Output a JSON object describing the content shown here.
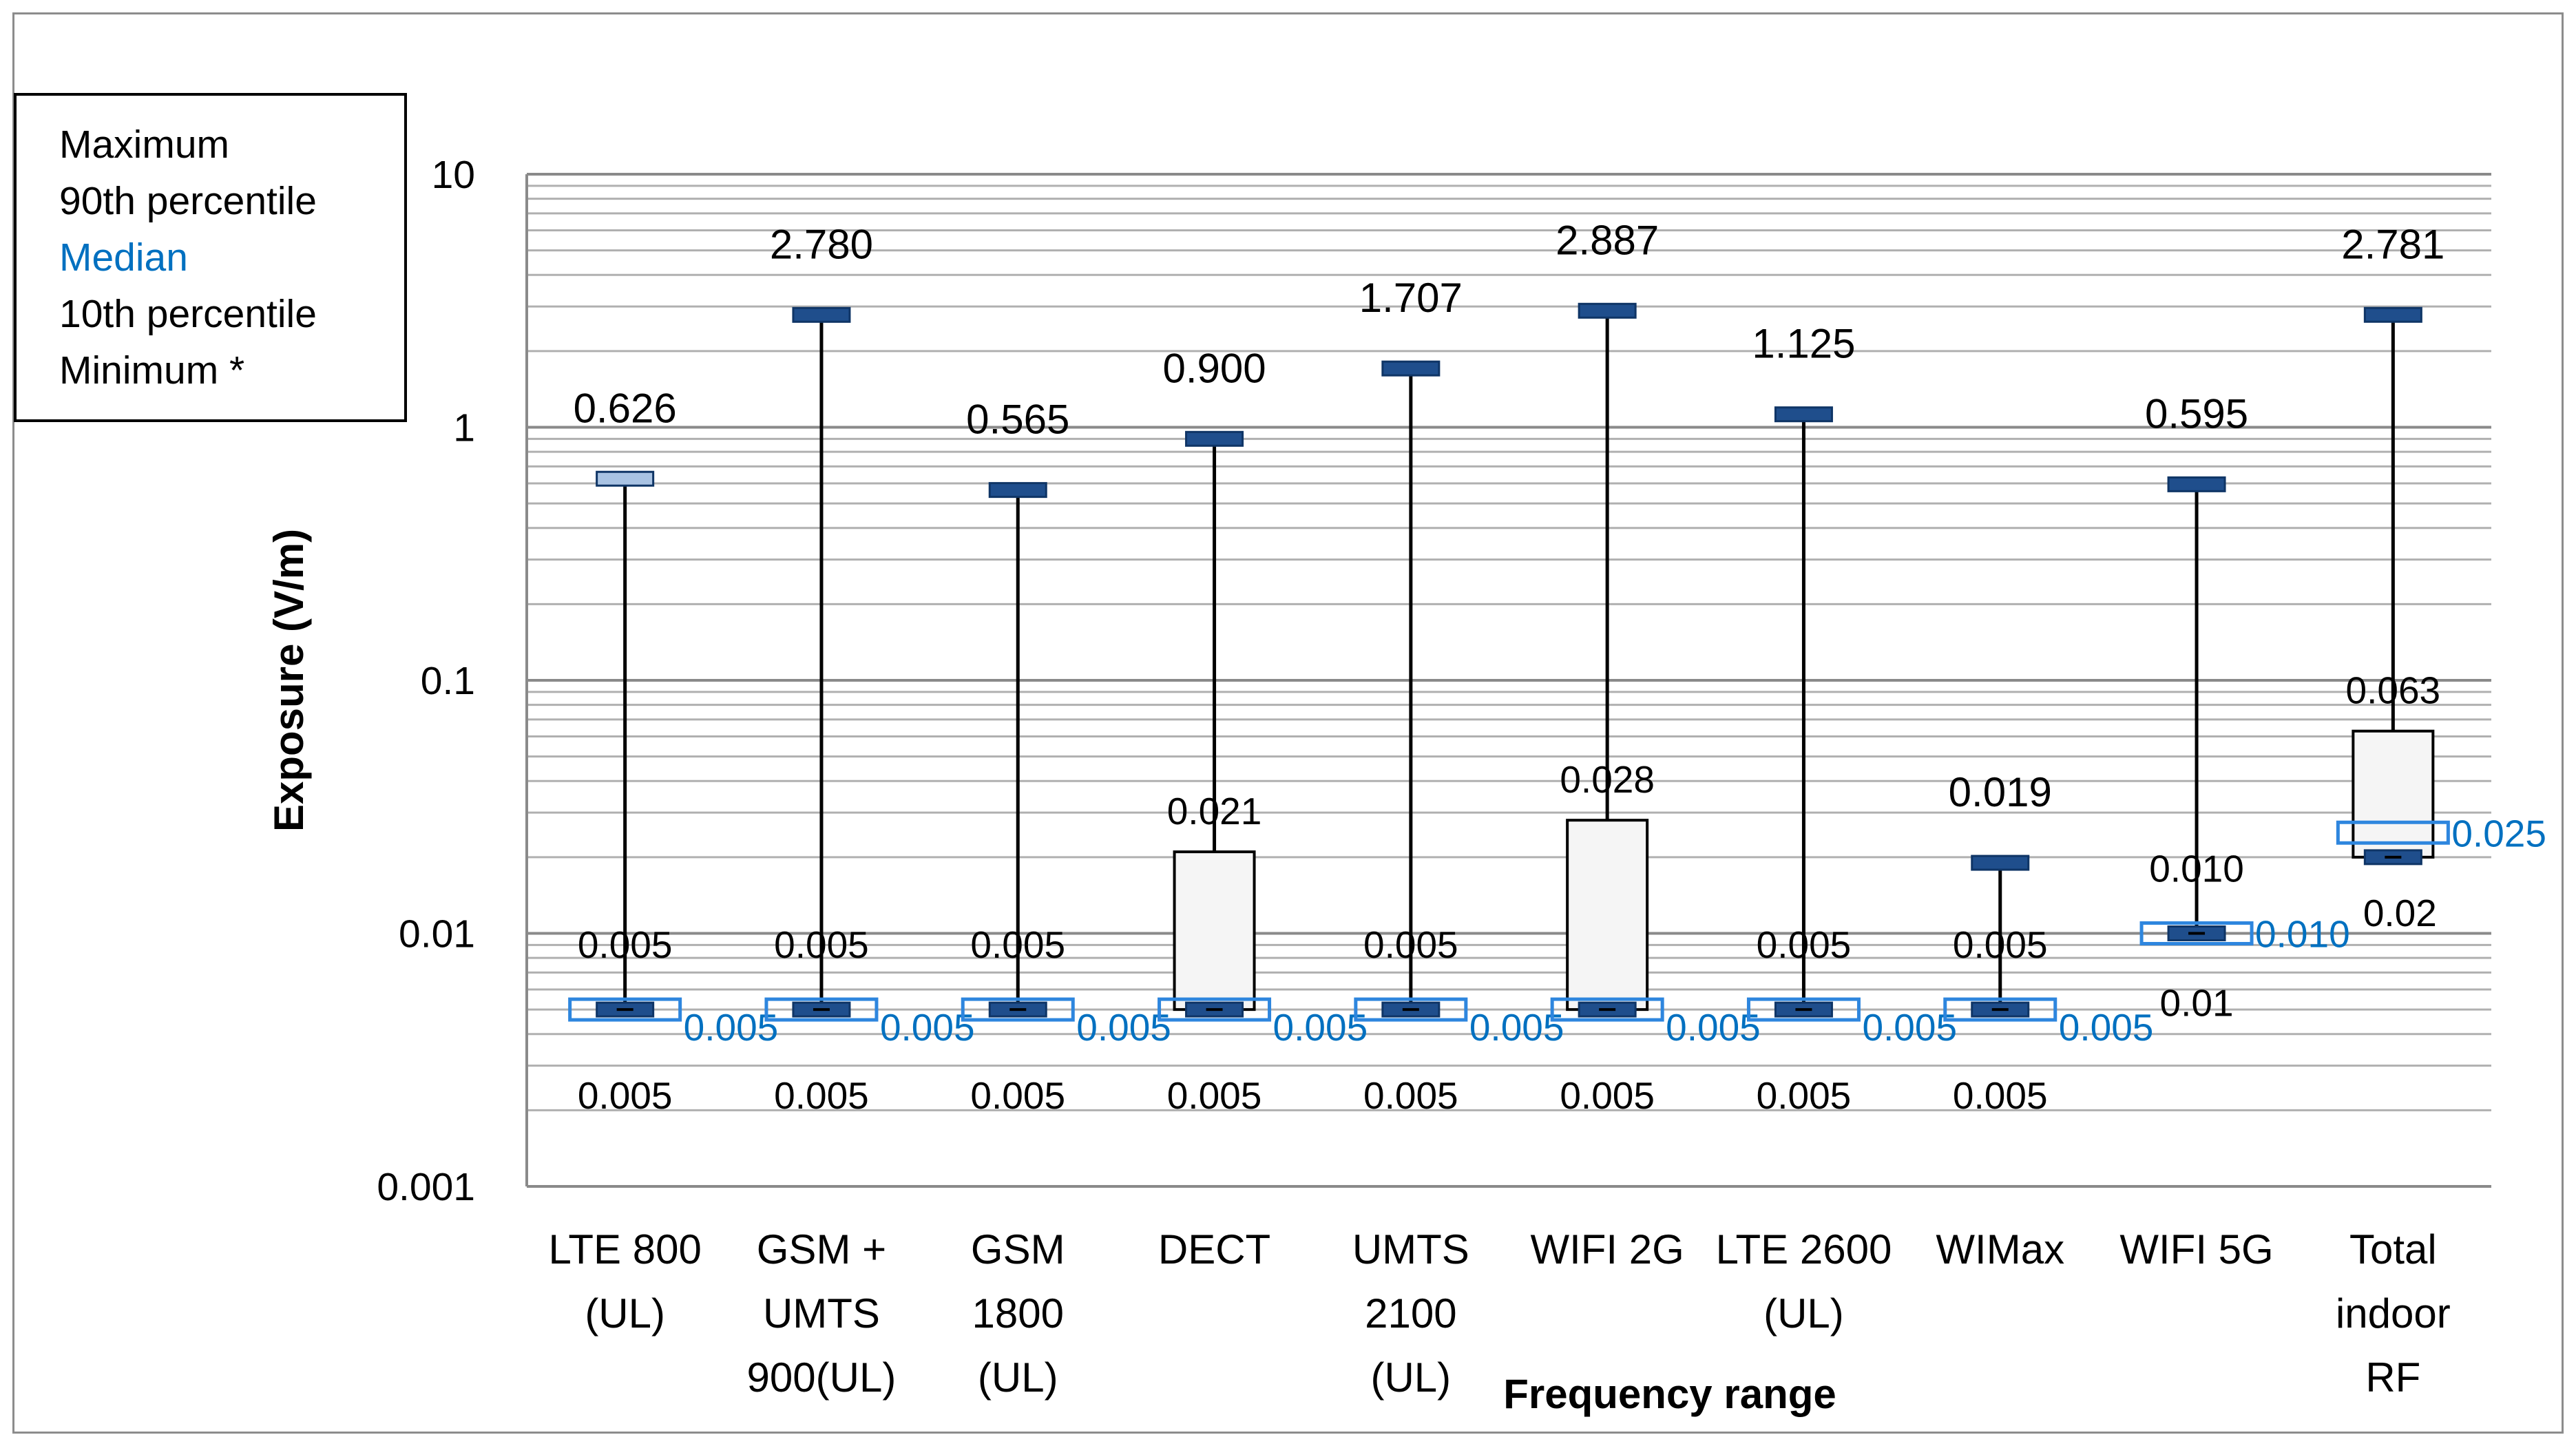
{
  "legend": {
    "maximum": "Maximum",
    "p90": "90th percentile",
    "median": "Median",
    "p10": "10th percentile",
    "minimum": "Minimum *"
  },
  "colors": {
    "whisker_cap": "#1f4e8c",
    "whisker_cap_light": "#a9c3e3",
    "median_box": "#2e86de",
    "median_text": "#0070c0",
    "iqr_fill": "#f5f5f5",
    "grid": "#b0b0b0"
  },
  "chart_data": {
    "type": "boxplot",
    "xlabel": "Frequency range",
    "ylabel": "Exposure (V/m)",
    "yscale": "log",
    "ylim": [
      0.001,
      10
    ],
    "ytick_labels": [
      "0.001",
      "0.01",
      "0.1",
      "1",
      "10"
    ],
    "ytick_values": [
      0.001,
      0.01,
      0.1,
      1,
      10
    ],
    "categories": [
      {
        "name": [
          "LTE 800",
          "(UL)"
        ],
        "max": 0.626,
        "max_label": "0.626",
        "p90": 0.005,
        "p90_label": "0.005",
        "median": 0.005,
        "median_label": "0.005",
        "p10": 0.005,
        "min": 0.005,
        "min_label": "0.005",
        "max_light": true
      },
      {
        "name": [
          "GSM +",
          "UMTS",
          "900(UL)"
        ],
        "max": 2.78,
        "max_label": "2.780",
        "p90": 0.005,
        "p90_label": "0.005",
        "median": 0.005,
        "median_label": "0.005",
        "p10": 0.005,
        "min": 0.005,
        "min_label": "0.005"
      },
      {
        "name": [
          "GSM",
          "1800",
          "(UL)"
        ],
        "max": 0.565,
        "max_label": "0.565",
        "p90": 0.005,
        "p90_label": "0.005",
        "median": 0.005,
        "median_label": "0.005",
        "p10": 0.005,
        "min": 0.005,
        "min_label": "0.005"
      },
      {
        "name": [
          "DECT"
        ],
        "max": 0.9,
        "max_label": "0.900",
        "p90": 0.021,
        "p90_label": "0.021",
        "median": 0.005,
        "median_label": "0.005",
        "p10": 0.005,
        "min": 0.005,
        "min_label": "0.005"
      },
      {
        "name": [
          "UMTS",
          "2100",
          "(UL)"
        ],
        "max": 1.707,
        "max_label": "1.707",
        "p90": 0.005,
        "p90_label": "0.005",
        "median": 0.005,
        "median_label": "0.005",
        "p10": 0.005,
        "min": 0.005,
        "min_label": "0.005"
      },
      {
        "name": [
          "WIFI 2G"
        ],
        "max": 2.887,
        "max_label": "2.887",
        "p90": 0.028,
        "p90_label": "0.028",
        "median": 0.005,
        "median_label": "0.005",
        "p10": 0.005,
        "min": 0.005,
        "min_label": "0.005"
      },
      {
        "name": [
          "LTE 2600",
          "(UL)"
        ],
        "max": 1.125,
        "max_label": "1.125",
        "p90": 0.005,
        "p90_label": "0.005",
        "median": 0.005,
        "median_label": "0.005",
        "p10": 0.005,
        "min": 0.005,
        "min_label": "0.005"
      },
      {
        "name": [
          "WIMax"
        ],
        "max": 0.019,
        "max_label": "0.019",
        "p90": 0.005,
        "p90_label": "0.005",
        "median": 0.005,
        "median_label": "0.005",
        "p10": 0.005,
        "min": 0.005,
        "min_label": "0.005"
      },
      {
        "name": [
          "WIFI 5G"
        ],
        "max": 0.595,
        "max_label": "0.595",
        "p90": 0.01,
        "p90_label": "0.010",
        "median": 0.01,
        "median_label": "0.010",
        "p10": 0.01,
        "min": 0.01,
        "min_label": "0.01"
      },
      {
        "name": [
          "Total",
          "indoor",
          "RF"
        ],
        "max": 2.781,
        "max_label": "2.781",
        "p90": 0.063,
        "p90_label": "0.063",
        "median": 0.025,
        "median_label": "0.025",
        "p10": 0.02,
        "min": 0.02,
        "min_label": "0.02"
      }
    ]
  }
}
